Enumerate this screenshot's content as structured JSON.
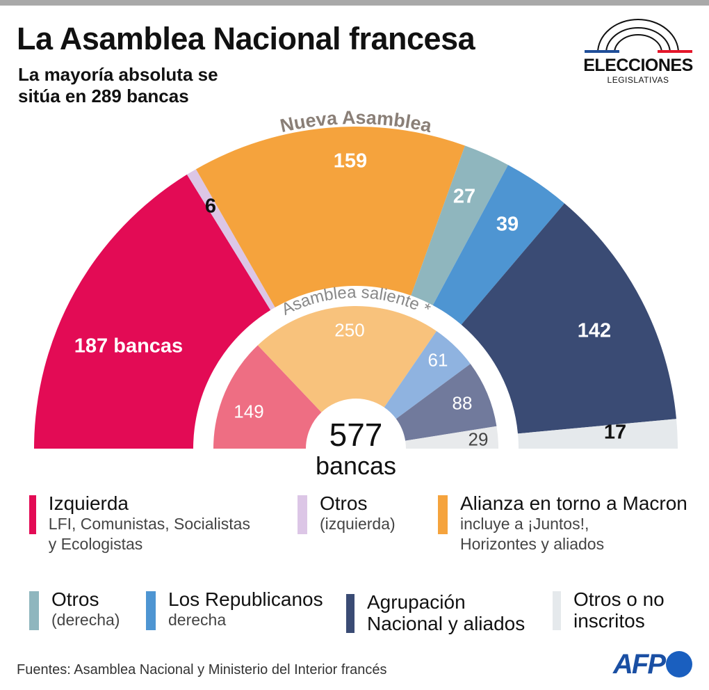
{
  "header": {
    "title": "La Asamblea Nacional francesa",
    "subtitle": "La mayoría absoluta se sitúa en 289 bancas"
  },
  "logo": {
    "word": "ELECCIONES",
    "sub": "LEGISLATIVAS",
    "colors": {
      "blue": "#1f4e99",
      "red": "#e4162a"
    }
  },
  "chart_data": {
    "type": "pie",
    "subtype": "parliament-semicircle",
    "total": {
      "value": "577",
      "unit": "bancas"
    },
    "outer": {
      "name": "Nueva Asamblea",
      "categories": [
        "Izquierda",
        "Otros (izquierda)",
        "Alianza en torno a Macron",
        "Otros (derecha)",
        "Los Republicanos",
        "Agrupación Nacional y aliados",
        "Otros o no inscritos"
      ],
      "values": [
        187,
        6,
        159,
        27,
        39,
        142,
        17
      ],
      "labels": [
        "187 bancas",
        "6",
        "159",
        "27",
        "39",
        "142",
        "17"
      ],
      "colors": [
        "#e30b55",
        "#dcc6e6",
        "#f5a33d",
        "#8fb6be",
        "#4e95d2",
        "#3a4b74",
        "#e5e9ec"
      ]
    },
    "inner": {
      "name": "Asamblea saliente *",
      "categories": [
        "Izquierda",
        "Alianza en torno a Macron",
        "Los Republicanos",
        "Agrupación Nacional y aliados",
        "Otros o no inscritos"
      ],
      "values": [
        149,
        250,
        61,
        88,
        29
      ],
      "labels": [
        "149",
        "250",
        "61",
        "88",
        "29"
      ],
      "colors": [
        "#ee6e83",
        "#f8c27c",
        "#8fb3e0",
        "#717a9c",
        "#e8eaec"
      ]
    }
  },
  "legend": [
    {
      "title": "Izquierda",
      "desc": "LFI, Comunistas, Socialistas y Ecologistas",
      "color": "#e30b55"
    },
    {
      "title": "Otros",
      "desc": "(izquierda)",
      "color": "#dcc6e6"
    },
    {
      "title": "Alianza en torno a Macron",
      "desc": "incluye a ¡Juntos!, Horizontes y aliados",
      "color": "#f5a33d"
    },
    {
      "title": "Otros",
      "desc": "(derecha)",
      "color": "#8fb6be"
    },
    {
      "title": "Los Republicanos",
      "desc": "derecha",
      "color": "#4e95d2"
    },
    {
      "title": "Agrupación Nacional y aliados",
      "desc": "",
      "color": "#3a4b74"
    },
    {
      "title": "Otros o no inscritos",
      "desc": "",
      "color": "#e5e9ec"
    }
  ],
  "footer": {
    "source": "Fuentes: Asamblea Nacional y Ministerio del Interior francés",
    "brand": "AFP"
  }
}
